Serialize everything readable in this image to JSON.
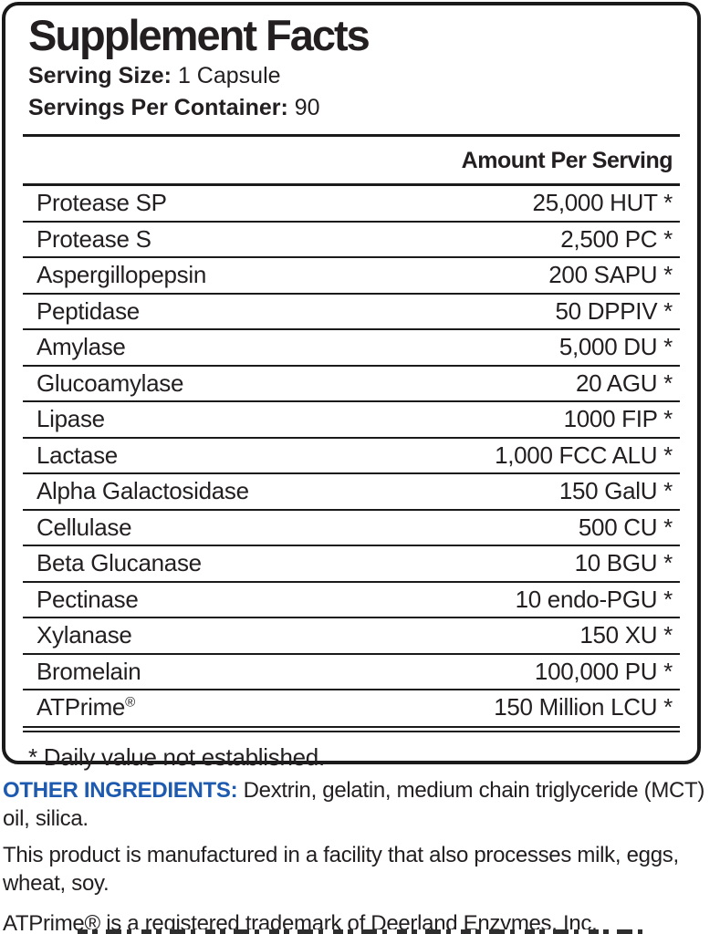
{
  "label": {
    "title": "Supplement Facts",
    "serving_size_label": "Serving Size:",
    "serving_size_value": "1 Capsule",
    "servings_per_container_label": "Servings Per Container:",
    "servings_per_container_value": "90",
    "amount_header": "Amount Per Serving",
    "rows": [
      {
        "name": "Protease SP",
        "amount": "25,000 HUT *"
      },
      {
        "name": "Protease S",
        "amount": "2,500 PC *"
      },
      {
        "name": "Aspergillopepsin",
        "amount": "200 SAPU *"
      },
      {
        "name": "Peptidase",
        "amount": "50 DPPIV *"
      },
      {
        "name": "Amylase",
        "amount": "5,000 DU *"
      },
      {
        "name": "Glucoamylase",
        "amount": "20 AGU *"
      },
      {
        "name": "Lipase",
        "amount": "1000 FIP *"
      },
      {
        "name": "Lactase",
        "amount": "1,000 FCC ALU *"
      },
      {
        "name": "Alpha Galactosidase",
        "amount": "150 GalU *"
      },
      {
        "name": "Cellulase",
        "amount": "500 CU *"
      },
      {
        "name": "Beta Glucanase",
        "amount": "10 BGU *"
      },
      {
        "name": "Pectinase",
        "amount": "10 endo-PGU *"
      },
      {
        "name": "Xylanase",
        "amount": "150 XU *"
      },
      {
        "name": "Bromelain",
        "amount": "100,000 PU *"
      },
      {
        "name": "ATPrime®",
        "amount": "150 Million LCU *"
      }
    ],
    "footnote": "* Daily value not established."
  },
  "other_ingredients": {
    "label": "OTHER INGREDIENTS:",
    "text": " Dextrin, gelatin, medium chain triglyceride (MCT) oil, silica."
  },
  "allergen_statement": "This product is manufactured in a facility that also processes milk, eggs, wheat, soy.",
  "trademark_statement": "ATPrime® is a registered trademark of Deerland Enzymes, Inc.",
  "colors": {
    "accent_blue": "#1e5bb0",
    "text_black": "#231f20",
    "border_black": "#1a1a1a"
  }
}
